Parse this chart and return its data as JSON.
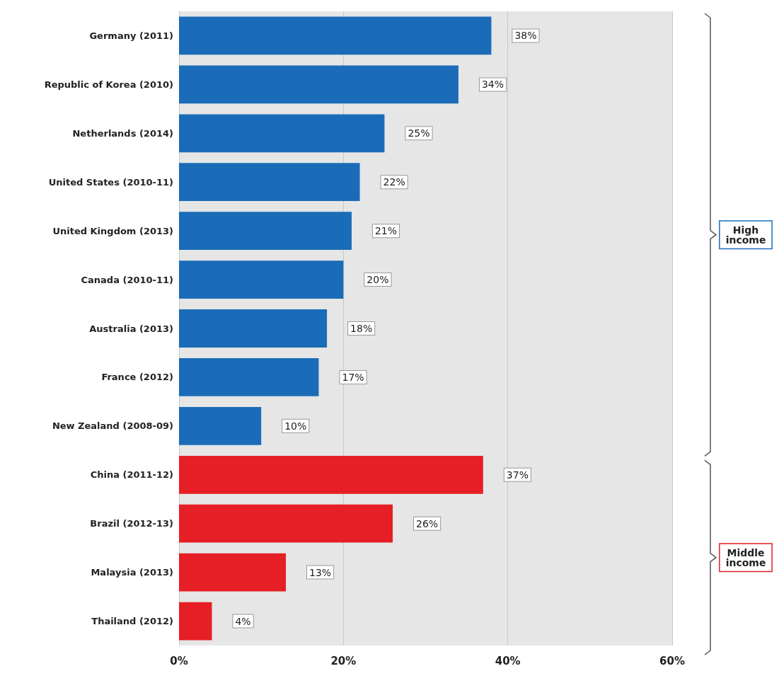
{
  "chart_data": {
    "type": "bar",
    "orientation": "horizontal",
    "categories": [
      "Germany (2011)",
      "Republic of Korea (2010)",
      "Netherlands (2014)",
      "United States (2010-11)",
      "United Kingdom (2013)",
      "Canada (2010-11)",
      "Australia (2013)",
      "France (2012)",
      "New Zealand (2008-09)",
      "China (2011-12)",
      "Brazil (2012-13)",
      "Malaysia (2013)",
      "Thailand (2012)"
    ],
    "values": [
      38,
      34,
      25,
      22,
      21,
      20,
      18,
      17,
      10,
      37,
      26,
      13,
      4
    ],
    "value_labels": [
      "38%",
      "34%",
      "25%",
      "22%",
      "21%",
      "20%",
      "18%",
      "17%",
      "10%",
      "37%",
      "26%",
      "13%",
      "4%"
    ],
    "colors": [
      "#1a6cb8",
      "#1a6cb8",
      "#1a6cb8",
      "#1a6cb8",
      "#1a6cb8",
      "#1a6cb8",
      "#1a6cb8",
      "#1a6cb8",
      "#1a6cb8",
      "#e61e25",
      "#e61e25",
      "#e61e25",
      "#e61e25"
    ],
    "xlim": [
      0,
      60
    ],
    "xticks": [
      {
        "value": 0,
        "label": "0%"
      },
      {
        "value": 20,
        "label": "20%"
      },
      {
        "value": 40,
        "label": "40%"
      },
      {
        "value": 60,
        "label": "60%"
      }
    ],
    "grid": "x",
    "annotations": [
      "High\nincome",
      "Middle\nincome"
    ]
  }
}
